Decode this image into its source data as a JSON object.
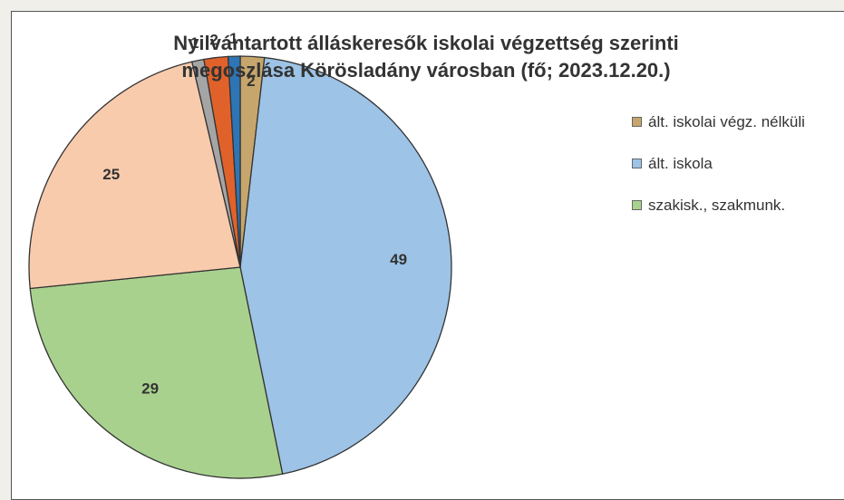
{
  "chart_data": {
    "type": "pie",
    "title": [
      "Nyilvántartott álláskeresők iskolai végzettség szerinti",
      "megoszlása Körösladány városban (fő; 2023.12.20.)"
    ],
    "categories": [
      "ált. iskolai végz. nélküli",
      "ált. iskola",
      "szakisk., szakmunk.",
      null,
      null,
      null,
      null
    ],
    "values": [
      2,
      49,
      29,
      25,
      1,
      2,
      1
    ],
    "colors": [
      "#c6a66c",
      "#9dc3e6",
      "#a9d18e",
      "#f8cbad",
      "#a5a5a5",
      "#e0622a",
      "#2e75b6"
    ],
    "legend": "right"
  }
}
